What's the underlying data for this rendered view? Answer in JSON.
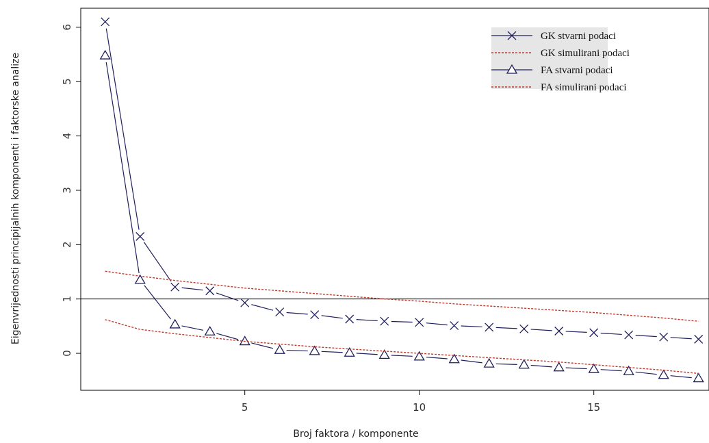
{
  "chart_data": {
    "type": "line",
    "title": "",
    "xlabel": "Broj faktora / komponente",
    "ylabel": "Eigenvrijednosti principijalnih komponenti i faktorske analize",
    "xlim": [
      0.3,
      18.3
    ],
    "ylim": [
      -0.68,
      6.35
    ],
    "xticks": [
      5,
      10,
      15
    ],
    "yticks": [
      0,
      1,
      2,
      3,
      4,
      5,
      6
    ],
    "reference_line_y": 1,
    "grid": false,
    "legend_position": "top-right",
    "colors": {
      "actual": "#1f1f5c",
      "simulated": "#c0392b"
    },
    "x": [
      1,
      2,
      3,
      4,
      5,
      6,
      7,
      8,
      9,
      10,
      11,
      12,
      13,
      14,
      15,
      16,
      17,
      18
    ],
    "series": [
      {
        "name": "GK stvarni podaci",
        "marker": "x",
        "color": "#1f1f5c",
        "values": [
          6.1,
          2.15,
          1.22,
          1.15,
          0.93,
          0.76,
          0.71,
          0.63,
          0.59,
          0.57,
          0.51,
          0.48,
          0.45,
          0.41,
          0.38,
          0.34,
          0.3,
          0.26
        ]
      },
      {
        "name": "GK simulirani podaci",
        "marker": "none",
        "color": "#c0392b",
        "values": [
          1.51,
          1.42,
          1.34,
          1.27,
          1.2,
          1.15,
          1.1,
          1.05,
          1.0,
          0.96,
          0.91,
          0.87,
          0.83,
          0.79,
          0.75,
          0.7,
          0.65,
          0.59
        ]
      },
      {
        "name": "FA stvarni podaci",
        "marker": "triangle",
        "color": "#1f1f5c",
        "values": [
          5.48,
          1.35,
          0.53,
          0.4,
          0.22,
          0.06,
          0.04,
          0.01,
          -0.03,
          -0.06,
          -0.11,
          -0.19,
          -0.21,
          -0.26,
          -0.29,
          -0.33,
          -0.4,
          -0.46
        ]
      },
      {
        "name": "FA simulirani podaci",
        "marker": "none",
        "color": "#c0392b",
        "values": [
          0.62,
          0.44,
          0.36,
          0.29,
          0.22,
          0.17,
          0.12,
          0.08,
          0.04,
          0.0,
          -0.04,
          -0.08,
          -0.12,
          -0.16,
          -0.21,
          -0.26,
          -0.31,
          -0.37
        ]
      }
    ]
  }
}
